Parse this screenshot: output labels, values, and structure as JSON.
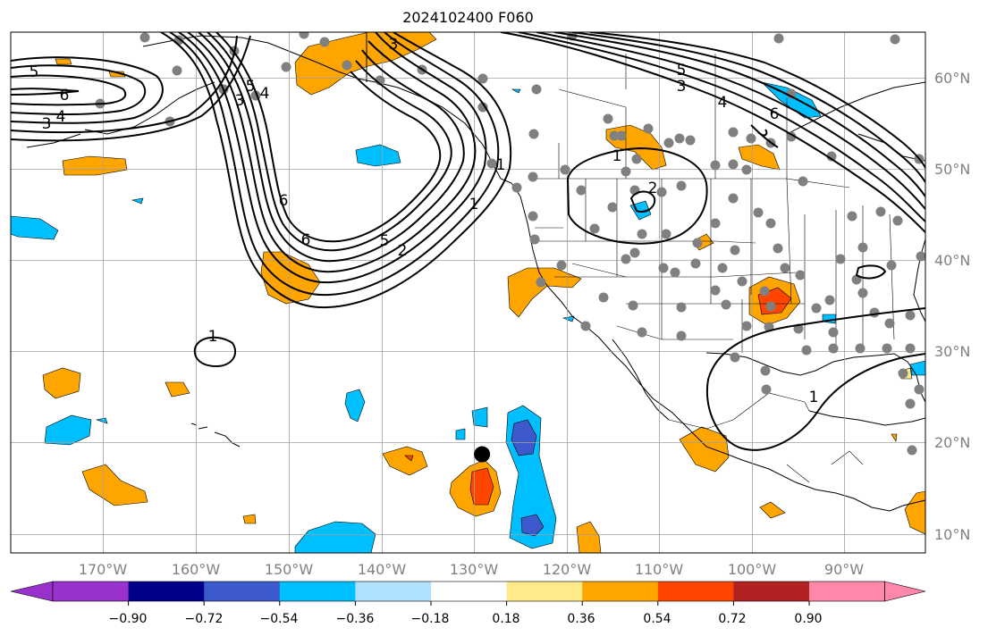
{
  "title": "2024102400 F060",
  "map": {
    "projection": "PlateCarree",
    "lon_range": [
      -179,
      -81
    ],
    "lat_range": [
      7,
      64
    ],
    "lon_ticks": [
      "170°W",
      "160°W",
      "150°W",
      "140°W",
      "130°W",
      "120°W",
      "110°W",
      "100°W",
      "90°W"
    ],
    "lat_ticks": [
      "60°N",
      "50°N",
      "40°N",
      "30°N",
      "20°N",
      "10°N"
    ],
    "grid": true
  },
  "colorbar": {
    "orientation": "horizontal",
    "extend": "both",
    "tick_labels": [
      "−0.90",
      "−0.72",
      "−0.54",
      "−0.36",
      "−0.18",
      "0.18",
      "0.36",
      "0.54",
      "0.72",
      "0.90"
    ],
    "colors": [
      "#9932cc",
      "#00008b",
      "#3d5acc",
      "#00bfff",
      "#b0e2ff",
      "#ffffff",
      "#ffe98a",
      "#ffa500",
      "#ff4500",
      "#b22222",
      "#ff88aa"
    ]
  },
  "contour_labels": [
    "5",
    "6",
    "4",
    "3",
    "3",
    "5",
    "3",
    "4",
    "6",
    "1",
    "2",
    "5",
    "6",
    "1",
    "5",
    "3",
    "4",
    "6",
    "1",
    "2",
    "1",
    "1"
  ],
  "marker": {
    "lat": 17.8,
    "lon": -128.5,
    "color": "#000000"
  }
}
